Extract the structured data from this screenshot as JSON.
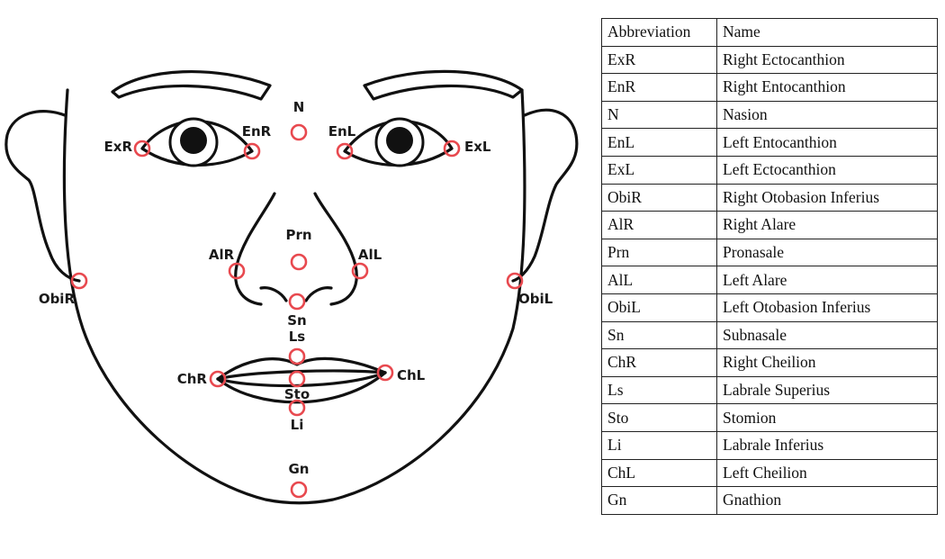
{
  "landmarks": [
    {
      "abbr": "N"
    },
    {
      "abbr": "ExR"
    },
    {
      "abbr": "EnR"
    },
    {
      "abbr": "EnL"
    },
    {
      "abbr": "ExL"
    },
    {
      "abbr": "Prn"
    },
    {
      "abbr": "AlR"
    },
    {
      "abbr": "AlL"
    },
    {
      "abbr": "ObiR"
    },
    {
      "abbr": "ObiL"
    },
    {
      "abbr": "Sn"
    },
    {
      "abbr": "Ls"
    },
    {
      "abbr": "ChR"
    },
    {
      "abbr": "ChL"
    },
    {
      "abbr": "Sto"
    },
    {
      "abbr": "Li"
    },
    {
      "abbr": "Gn"
    }
  ],
  "landmark_color": "#e8494f",
  "table": {
    "header": {
      "abbreviation": "Abbreviation",
      "name": "Name"
    },
    "rows": [
      {
        "abbr": "ExR",
        "name": "Right Ectocanthion"
      },
      {
        "abbr": "EnR",
        "name": "Right Entocanthion"
      },
      {
        "abbr": "N",
        "name": "Nasion"
      },
      {
        "abbr": "EnL",
        "name": "Left Entocanthion"
      },
      {
        "abbr": "ExL",
        "name": "Left Ectocanthion"
      },
      {
        "abbr": "ObiR",
        "name": "Right Otobasion Inferius"
      },
      {
        "abbr": "AlR",
        "name": "Right Alare"
      },
      {
        "abbr": "Prn",
        "name": "Pronasale"
      },
      {
        "abbr": "AlL",
        "name": "Left Alare"
      },
      {
        "abbr": "ObiL",
        "name": "Left Otobasion Inferius"
      },
      {
        "abbr": "Sn",
        "name": "Subnasale"
      },
      {
        "abbr": "ChR",
        "name": "Right Cheilion"
      },
      {
        "abbr": "Ls",
        "name": "Labrale Superius"
      },
      {
        "abbr": "Sto",
        "name": "Stomion"
      },
      {
        "abbr": "Li",
        "name": "Labrale Inferius"
      },
      {
        "abbr": "ChL",
        "name": "Left Cheilion"
      },
      {
        "abbr": "Gn",
        "name": "Gnathion"
      }
    ]
  }
}
